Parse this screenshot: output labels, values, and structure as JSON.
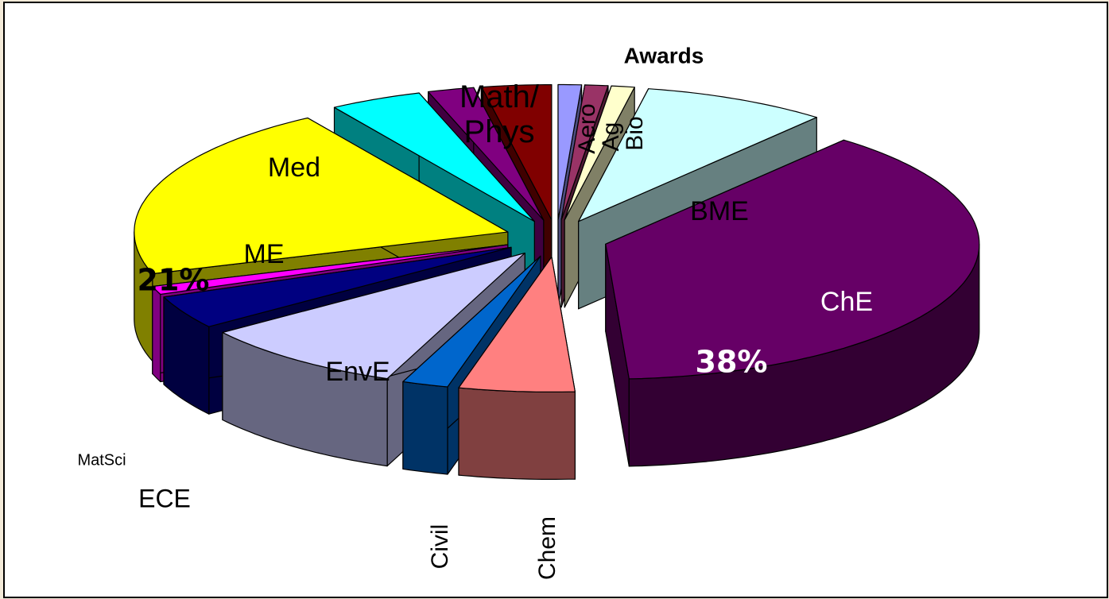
{
  "chart_data": {
    "type": "pie3d",
    "title": "Awards",
    "categories": [
      "Aero",
      "Ag",
      "Bio",
      "BME",
      "ChE",
      "Chem",
      "Civil",
      "EnvE",
      "ECE",
      "MatSci",
      "ME",
      "Med",
      null,
      "Math/Phys"
    ],
    "values": [
      1,
      1,
      1,
      8,
      38,
      5,
      2,
      9,
      4,
      1,
      21,
      4,
      2,
      3
    ],
    "value_labels": [
      null,
      null,
      null,
      null,
      "38%",
      null,
      null,
      null,
      null,
      null,
      "21%",
      null,
      null,
      null
    ],
    "colors": [
      "#9999ff",
      "#993366",
      "#ffffcc",
      "#ccffff",
      "#660066",
      "#ff8080",
      "#0066cc",
      "#ccccff",
      "#000080",
      "#ff00ff",
      "#ffff00",
      "#00ffff",
      "#800080",
      "#800000"
    ]
  }
}
